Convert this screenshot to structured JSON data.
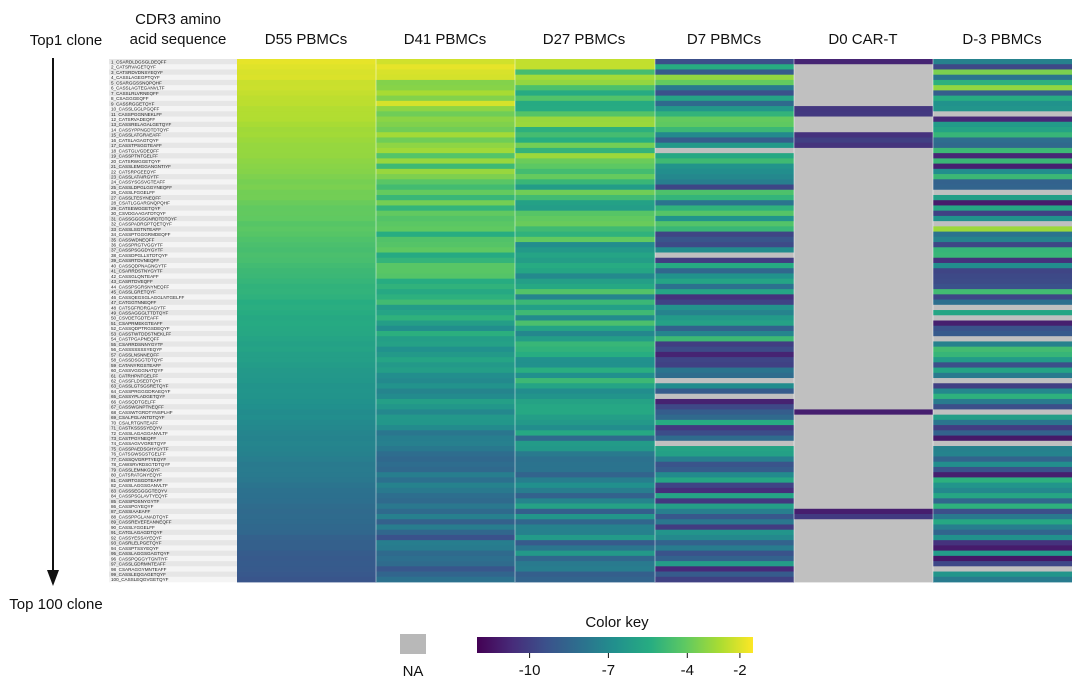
{
  "chart_data": {
    "type": "heatmap",
    "row_axis": {
      "top_label": "Top1 clone",
      "bottom_label": "Top 100 clone"
    },
    "sequence_header": [
      "CDR3 amino",
      "acid sequence"
    ],
    "columns": [
      "D55 PBMCs",
      "D41 PBMCs",
      "D27 PBMCs",
      "D7 PBMCs",
      "D0 CAR-T",
      "D-3 PBMCs"
    ],
    "rows": [
      "1_CSARDLDGSGLDEQFF",
      "2_CATSRVAGETQYF",
      "3_CATSRDVDNSYEQYF",
      "4_CASSLAGEGPTQYF",
      "5_CSARGGSSNQPQHF",
      "6_CASSLAGTEGANVLTF",
      "7_CASSLRLVRNEQFF",
      "8_CSAGGGEQFF",
      "9_CASSRGGETQYF",
      "10_CASSLGGLPGQFF",
      "11_CASSPGGNNEKLFF",
      "12_CATSRVADEQFF",
      "13_CASSRELAGALGETQYF",
      "14_CASSYPPNGDTDTQYF",
      "15_CASSLATGRAEAFF",
      "16_CATSLAGAGTQYF",
      "17_CASSTPSGGTEAFF",
      "18_CASTGLVGDEQFF",
      "19_CASSPTNTGELFF",
      "20_CATSRWGGETQYF",
      "21_CASSLEMGGANGNTIYF",
      "22_CATSRPGEEQYF",
      "23_CASSLATAIRGYTF",
      "24_CASSYSGSVGTEAFF",
      "25_CASSLDPGLGGYNEQFF",
      "26_CASSLFGGELFF",
      "27_CASSLTESYNEQFF",
      "28_CSATLGGARGNQPQHF",
      "29_CATSEWGGETQYF",
      "30_CSVDGAAGATDTQYF",
      "31_CASSGGGSGNRDTDTQYF",
      "32_CASSPADRGPTQETQYF",
      "33_CASSLSGTNTEAFF",
      "34_CASSPTGGGRMDEQFF",
      "35_CASSWDNEQFF",
      "36_CASSPRGTVGGYTF",
      "37_CASSPSGGDYGYTF",
      "38_CASSDPGLLSTDTQYF",
      "39_CASSRTDVNEQFF",
      "40_CASSQDPNAGNGYTF",
      "41_CSARRDSTNYGYTF",
      "42_CASSGLQNTEAFF",
      "43_CASRTDVEQFF",
      "44_CASSPSGRSNYNEQFF",
      "45_CASSLGRETQYF",
      "46_CASSQEGSGLAGGLNTGELFF",
      "47_CATGGTNNEQFF",
      "48_CATSGFRDRGAGYTF",
      "49_CASSAGGGLTTDTQYF",
      "50_CSVDETGDTEAFF",
      "51_CSAPRMEKGTEAFF",
      "52_CASSQDPTRGSDEQYF",
      "53_CASSTWTDDSTNEKLFF",
      "54_CASTPGAPNEQFF",
      "55_CSARRDSNNYGYTF",
      "56_CASSSSSSSYEQYF",
      "57_CASSLNSNNEQFF",
      "58_CASSDSGGTDTQYF",
      "59_CATANYRGSTEAFF",
      "60_CASSVGGGNATQYF",
      "61_CATRHPNTGELFF",
      "62_CASSFLDSEDTQYF",
      "63_CASSLGTSGSRETQYF",
      "64_CASSPRGGGDRAEQYF",
      "65_CASSYPLADGETQYF",
      "66_CASSQDTGELFF",
      "67_CASSWGNPTNEQFF",
      "68_CASSWTGRDTYNSPLHF",
      "69_CSALPGLANTDTQYF",
      "70_CSALRTGNTEAFF",
      "71_CASTKSSSSYEQYV",
      "72_CASSLAGAGGANVLTF",
      "73_CASTPGYNEQFF",
      "74_CASSAGVVGRETQYF",
      "75_CASSPAEDSGHYGYTF",
      "76_CATSGWSGSTGELFF",
      "77_CASSQVGRPTYEQYF",
      "78_CAWSRVRDSGTDTQYF",
      "79_CASSLEMNKGQYF",
      "80_CATSRATGNYEQYF",
      "81_CASRTGSGDTEAFF",
      "82_CASSLAGGSGANVLTF",
      "83_CASSSEGGGGTEQYV",
      "84_CASSPSGLAVTYEQYF",
      "85_CASSPDSNYGYTF",
      "86_CASSPGYEQYF",
      "87_CASSIAAEAFF",
      "88_CASSPPGLANADTQYF",
      "89_CASSREVEFEANNEQFF",
      "90_CASSLYGGELFF",
      "91_CATGLAGAGDTQYF",
      "92_CASSYESSAYEQYF",
      "93_CASRLELPGETQYF",
      "94_CASSPTSSYEQYF",
      "95_CASSLAGGSGAGTQYF",
      "96_CASSPQGGYTGNTIYF",
      "97_CASSLGDRMNTEAFF",
      "98_CSARAGGYMNTEAFF",
      "99_CASSLEQGAGETQYF",
      "100_CASSLEQGVGETQYF"
    ],
    "value_scale": {
      "label": "Color key",
      "min": -12,
      "max": -1.5,
      "ticks": [
        -10,
        -7,
        -4,
        -2
      ],
      "palette": "viridis",
      "na_label": "NA",
      "na_color": "#c0c0c0"
    }
  }
}
